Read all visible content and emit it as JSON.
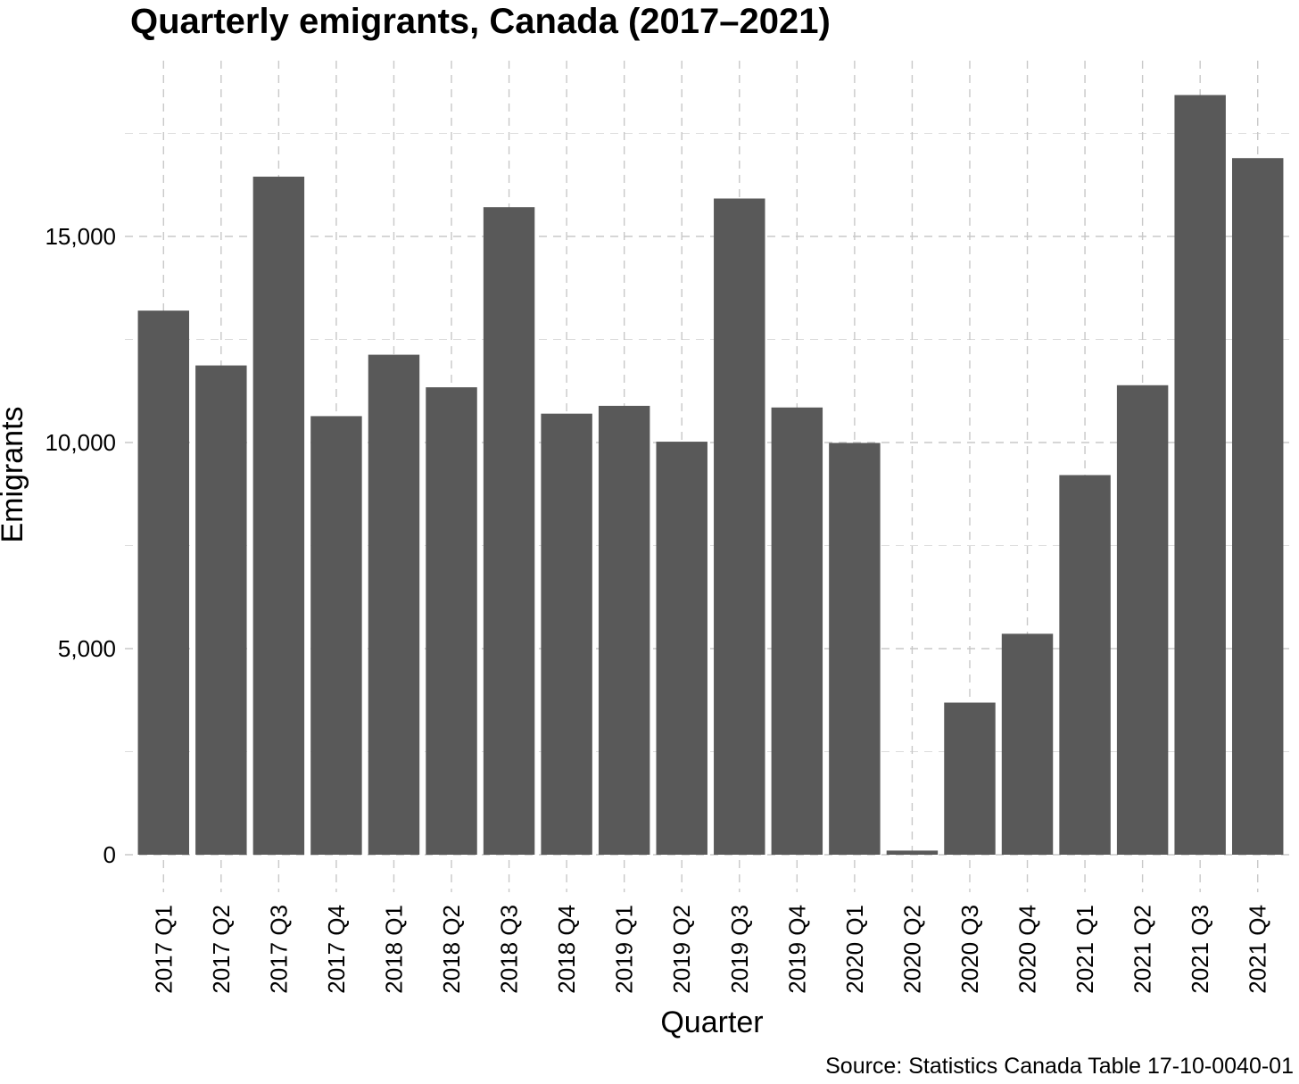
{
  "chart_data": {
    "type": "bar",
    "title": "Quarterly emigrants, Canada (2017–2021)",
    "xlabel": "Quarter",
    "ylabel": "Emigrants",
    "source": "Source: Statistics Canada Table 17-10-0040-01",
    "categories": [
      "2017 Q1",
      "2017 Q2",
      "2017 Q3",
      "2017 Q4",
      "2018 Q1",
      "2018 Q2",
      "2018 Q3",
      "2018 Q4",
      "2019 Q1",
      "2019 Q2",
      "2019 Q3",
      "2019 Q4",
      "2020 Q1",
      "2020 Q2",
      "2020 Q3",
      "2020 Q4",
      "2021 Q1",
      "2021 Q2",
      "2021 Q3",
      "2021 Q4"
    ],
    "values": [
      13200,
      11870,
      16450,
      10640,
      12130,
      11340,
      15710,
      10700,
      10890,
      10020,
      15920,
      10850,
      9990,
      100,
      3690,
      5360,
      9210,
      11390,
      18430,
      16900
    ],
    "ylim": [
      0,
      18900
    ],
    "yticks": [
      0,
      5000,
      10000,
      15000
    ],
    "ytick_labels": [
      "0",
      "5,000",
      "10,000",
      "15,000"
    ],
    "grid": true,
    "bar_color": "#595959"
  }
}
